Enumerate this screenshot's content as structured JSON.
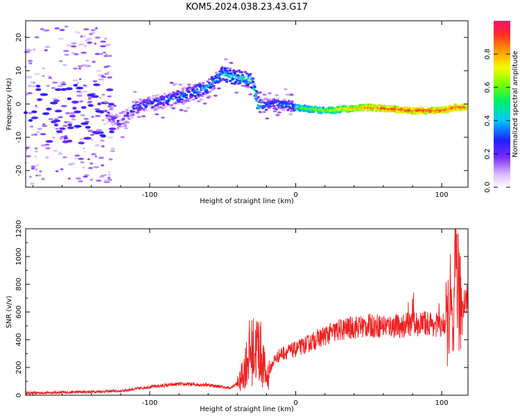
{
  "title": "KOM5.2024.038.23.43.G17",
  "chart_data": [
    {
      "type": "heatmap",
      "xlabel": "Height of straight line (km)",
      "ylabel": "Frequency (Hz)",
      "xlim": [
        -185,
        118
      ],
      "ylim": [
        -25,
        25
      ],
      "xticks": [
        -100,
        0,
        100
      ],
      "yticks": [
        -20,
        -10,
        0,
        10,
        20
      ],
      "colorbar": {
        "label": "Normalized spectral amplitude",
        "range": [
          0,
          1
        ],
        "ticks": [
          "0.0",
          "0.2",
          "0.4",
          "0.6",
          "0.8"
        ]
      },
      "ridge": {
        "description_points_x": [
          -185,
          -170,
          -150,
          -130,
          -120,
          -110,
          -100,
          -80,
          -60,
          -50,
          -40,
          -30,
          -25,
          -20,
          -10,
          0,
          20,
          50,
          80,
          100,
          110,
          118
        ],
        "description_points_y": [
          5,
          3,
          1,
          -3,
          -6,
          -1,
          0,
          2,
          5,
          9,
          8,
          7,
          -1,
          0,
          0,
          -1,
          -2,
          -1,
          -2,
          -2,
          -1,
          -1
        ]
      }
    },
    {
      "type": "line",
      "xlabel": "Height of straight line (km)",
      "ylabel": "SNR (v/v)",
      "xlim": [
        -185,
        118
      ],
      "ylim": [
        0,
        1200
      ],
      "xticks": [
        -100,
        0,
        100
      ],
      "yticks": [
        0,
        200,
        400,
        600,
        800,
        1000,
        1200
      ],
      "color": "#ee2222",
      "envelope": {
        "x": [
          -185,
          -160,
          -140,
          -120,
          -100,
          -80,
          -60,
          -45,
          -38,
          -32,
          -25,
          -20,
          -15,
          -10,
          0,
          10,
          20,
          30,
          40,
          50,
          60,
          70,
          80,
          90,
          100,
          104,
          106,
          108,
          110,
          112,
          118
        ],
        "y": [
          15,
          20,
          25,
          30,
          60,
          80,
          75,
          50,
          100,
          300,
          350,
          120,
          250,
          300,
          330,
          380,
          430,
          470,
          490,
          500,
          500,
          500,
          510,
          520,
          500,
          520,
          650,
          350,
          1100,
          650,
          700
        ]
      }
    }
  ]
}
